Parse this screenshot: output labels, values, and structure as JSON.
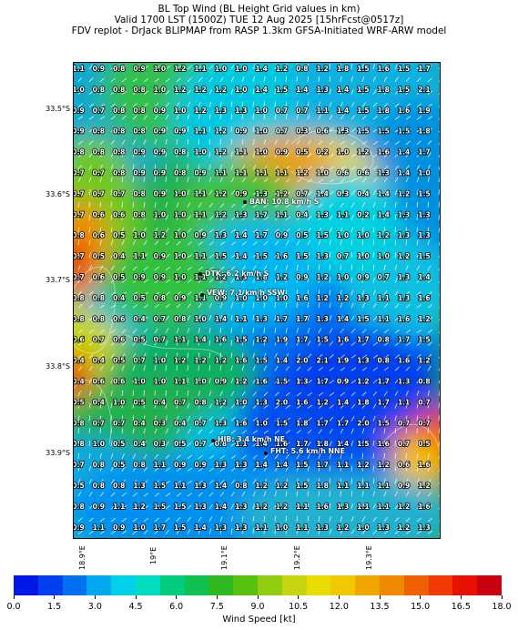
{
  "title_lines": [
    "BL Top Wind (BL Height Grid values in km)",
    "Valid 1700 LST (1500Z) TUE 12 Aug 2025 [15hrFcst@0517z]",
    "FDV replot - DrJack BLIPMAP from RASP 1.3km GFSA-Initiated WRF-ARW model"
  ],
  "lat_labels": [
    "33.5°S",
    "33.6°S",
    "33.7°S",
    "33.8°S",
    "33.9°S"
  ],
  "lon_labels": [
    "18.9°E",
    "19°E",
    "19.1°E",
    "19.2°E",
    "19.3°E"
  ],
  "stations": [
    {
      "id": "ban",
      "label": "BAN: 10.8 km/h S"
    },
    {
      "id": "dtk",
      "label": "DTK: 6.2 km/h S"
    },
    {
      "id": "vew",
      "label": "VEW: 7.1 km/h SSW"
    },
    {
      "id": "hib",
      "label": "HIB: 3.4 km/h NE"
    },
    {
      "id": "fht",
      "label": "FHT: 5.6 km/h NNE"
    }
  ],
  "grid_values": [
    [
      "1.1",
      "0.9",
      "0.8",
      "0.9",
      "1.0",
      "1.2",
      "1.1",
      "1.0",
      "1.0",
      "1.4",
      "1.2",
      "0.8",
      "1.2",
      "1.8",
      "1.5",
      "1.6",
      "1.5",
      "1.7"
    ],
    [
      "1.0",
      "0.8",
      "0.8",
      "0.8",
      "1.0",
      "1.2",
      "1.2",
      "1.2",
      "1.0",
      "1.4",
      "1.5",
      "1.4",
      "1.3",
      "1.4",
      "1.5",
      "1.8",
      "1.5",
      "2.1"
    ],
    [
      "0.9",
      "0.7",
      "0.8",
      "0.8",
      "0.9",
      "1.0",
      "1.2",
      "1.3",
      "1.3",
      "1.0",
      "0.7",
      "0.7",
      "1.1",
      "1.4",
      "1.5",
      "1.8",
      "1.6",
      "1.9"
    ],
    [
      "0.9",
      "0.8",
      "0.8",
      "0.8",
      "0.9",
      "0.9",
      "1.1",
      "1.2",
      "0.9",
      "1.0",
      "0.7",
      "0.3",
      "0.6",
      "1.3",
      "1.5",
      "1.5",
      "1.5",
      "1.8"
    ],
    [
      "0.8",
      "0.8",
      "0.8",
      "0.9",
      "0.9",
      "0.8",
      "1.0",
      "1.2",
      "1.1",
      "1.0",
      "0.9",
      "0.5",
      "0.2",
      "1.0",
      "1.2",
      "1.6",
      "1.4",
      "1.7"
    ],
    [
      "0.7",
      "0.7",
      "0.8",
      "0.9",
      "0.9",
      "0.8",
      "0.9",
      "1.1",
      "1.1",
      "1.1",
      "1.1",
      "1.2",
      "1.0",
      "0.6",
      "0.6",
      "1.3",
      "1.4",
      "1.0"
    ],
    [
      "0.7",
      "0.7",
      "0.7",
      "0.8",
      "0.9",
      "1.0",
      "1.1",
      "1.2",
      "0.9",
      "1.3",
      "1.2",
      "0.7",
      "1.4",
      "0.3",
      "0.4",
      "1.4",
      "1.2",
      "1.5"
    ],
    [
      "0.7",
      "0.6",
      "0.6",
      "0.8",
      "1.0",
      "1.0",
      "1.1",
      "1.2",
      "1.3",
      "1.7",
      "1.1",
      "0.4",
      "1.3",
      "1.1",
      "0.2",
      "1.4",
      "1.3",
      "1.3"
    ],
    [
      "0.8",
      "0.6",
      "0.5",
      "1.0",
      "1.2",
      "1.0",
      "0.9",
      "1.3",
      "1.4",
      "1.7",
      "0.9",
      "0.5",
      "1.5",
      "1.0",
      "1.0",
      "1.2",
      "1.3",
      "1.3"
    ],
    [
      "0.7",
      "0.5",
      "0.4",
      "1.1",
      "0.9",
      "1.0",
      "1.1",
      "1.5",
      "1.4",
      "1.5",
      "1.6",
      "1.5",
      "1.3",
      "0.7",
      "1.0",
      "1.0",
      "1.2",
      "1.5"
    ],
    [
      "0.7",
      "0.6",
      "0.5",
      "0.9",
      "0.9",
      "1.0",
      "1.1",
      "1.2",
      "1.3",
      "1.8",
      "1.2",
      "0.9",
      "1.2",
      "1.0",
      "0.9",
      "0.7",
      "1.3",
      "1.4"
    ],
    [
      "0.8",
      "0.8",
      "0.4",
      "0.5",
      "0.8",
      "0.9",
      "1.1",
      "0.9",
      "1.0",
      "1.0",
      "1.0",
      "1.6",
      "1.2",
      "1.2",
      "1.3",
      "1.1",
      "1.3",
      "1.6"
    ],
    [
      "0.8",
      "0.8",
      "0.6",
      "0.4",
      "0.7",
      "0.8",
      "1.0",
      "1.4",
      "1.1",
      "1.3",
      "1.7",
      "1.7",
      "1.3",
      "1.4",
      "1.5",
      "1.1",
      "1.6",
      "1.2"
    ],
    [
      "0.6",
      "0.7",
      "0.6",
      "0.5",
      "0.7",
      "1.1",
      "1.4",
      "1.6",
      "1.5",
      "1.2",
      "1.9",
      "1.7",
      "1.5",
      "1.6",
      "1.7",
      "0.8",
      "1.7",
      "1.5"
    ],
    [
      "0.4",
      "0.4",
      "0.5",
      "0.7",
      "1.0",
      "1.2",
      "1.2",
      "1.2",
      "1.6",
      "1.5",
      "1.4",
      "2.0",
      "2.1",
      "1.9",
      "1.3",
      "0.8",
      "1.6",
      "1.2"
    ],
    [
      "0.4",
      "0.6",
      "0.6",
      "1.0",
      "1.0",
      "1.1",
      "1.0",
      "0.9",
      "1.2",
      "1.6",
      "1.5",
      "1.3",
      "1.7",
      "0.9",
      "1.2",
      "1.7",
      "1.3",
      "0.8"
    ],
    [
      "0.5",
      "0.4",
      "1.0",
      "0.5",
      "0.4",
      "0.7",
      "0.8",
      "1.2",
      "1.0",
      "1.3",
      "2.0",
      "1.6",
      "1.2",
      "1.4",
      "1.8",
      "1.7",
      "1.1",
      "0.7"
    ],
    [
      "0.8",
      "0.7",
      "0.7",
      "0.4",
      "0.3",
      "0.4",
      "0.7",
      "1.3",
      "1.6",
      "1.0",
      "1.5",
      "1.8",
      "1.7",
      "1.7",
      "2.0",
      "1.5",
      "0.7",
      "0.7"
    ],
    [
      "0.8",
      "1.0",
      "0.5",
      "0.4",
      "0.3",
      "0.5",
      "0.7",
      "0.8",
      "1.1",
      "1.4",
      "1.6",
      "1.7",
      "1.8",
      "1.4",
      "1.5",
      "1.6",
      "0.7",
      "0.5"
    ],
    [
      "0.7",
      "0.8",
      "0.5",
      "0.8",
      "1.1",
      "0.9",
      "0.9",
      "1.3",
      "1.3",
      "1.4",
      "1.4",
      "1.5",
      "1.7",
      "1.1",
      "1.2",
      "1.2",
      "0.6",
      "1.6"
    ],
    [
      "0.5",
      "0.8",
      "0.8",
      "1.3",
      "1.5",
      "1.1",
      "1.3",
      "1.4",
      "0.8",
      "1.2",
      "1.2",
      "1.5",
      "1.8",
      "1.1",
      "1.1",
      "1.1",
      "0.9",
      "1.2"
    ],
    [
      "0.8",
      "0.9",
      "1.1",
      "1.2",
      "1.5",
      "1.5",
      "1.3",
      "1.4",
      "1.3",
      "1.2",
      "1.2",
      "1.1",
      "1.6",
      "1.3",
      "1.1",
      "1.1",
      "1.2",
      "1.6"
    ],
    [
      "0.9",
      "1.1",
      "0.9",
      "1.0",
      "1.7",
      "1.5",
      "1.4",
      "1.3",
      "1.3",
      "1.1",
      "1.0",
      "1.1",
      "1.3",
      "1.2",
      "1.0",
      "1.3",
      "1.2",
      "1.3"
    ]
  ],
  "colorbar": {
    "label": "Wind Speed [kt]",
    "ticks": [
      "0.0",
      "1.5",
      "3.0",
      "4.5",
      "6.0",
      "7.5",
      "9.0",
      "10.5",
      "12.0",
      "13.5",
      "15.0",
      "16.5",
      "18.0"
    ],
    "colors": [
      "#0018e6",
      "#0040f0",
      "#0070f0",
      "#00a8f0",
      "#00d0e8",
      "#00dcc0",
      "#00cc80",
      "#10c050",
      "#30b820",
      "#58c010",
      "#90cc10",
      "#c8d410",
      "#e8dc00",
      "#f0c800",
      "#f0a800",
      "#f08800",
      "#f06000",
      "#f03800",
      "#e81000",
      "#c80010"
    ]
  }
}
